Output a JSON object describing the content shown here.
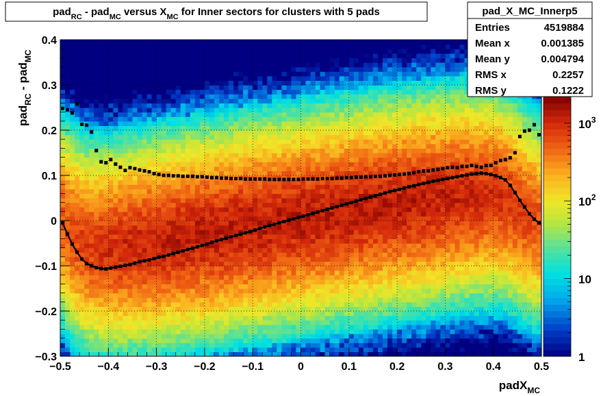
{
  "chart_data": {
    "type": "heatmap",
    "title_parts": [
      "pad",
      "RC",
      " - pad",
      "MC",
      " versus X",
      "MC",
      " for Inner sectors for clusters with 5 pads"
    ],
    "xlabel_parts": [
      "padX",
      "MC"
    ],
    "ylabel_parts": [
      "pad",
      "RC",
      " - pad",
      "MC"
    ],
    "xlim": [
      -0.5,
      0.5
    ],
    "ylim": [
      -0.3,
      0.4
    ],
    "x_ticks": [
      "−0.5",
      "−0.4",
      "−0.3",
      "−0.2",
      "−0.1",
      "0",
      "0.1",
      "0.2",
      "0.3",
      "0.4",
      "0.5"
    ],
    "x_tick_values": [
      -0.5,
      -0.4,
      -0.3,
      -0.2,
      -0.1,
      0,
      0.1,
      0.2,
      0.3,
      0.4,
      0.5
    ],
    "y_ticks": [
      "−0.3",
      "−0.2",
      "−0.1",
      "0",
      "0.1",
      "0.2",
      "0.3",
      "0.4"
    ],
    "y_tick_values": [
      -0.3,
      -0.2,
      -0.1,
      0,
      0.1,
      0.2,
      0.3,
      0.4
    ],
    "grid": true,
    "log_z": true,
    "z_ticks": [
      "1",
      "10",
      "10^2",
      "10^3"
    ],
    "z_tick_values": [
      1,
      10,
      100,
      1000
    ],
    "stats": {
      "name": "pad_X_MC_Innerp5",
      "rows": [
        {
          "label": "Entries",
          "value": "4519884"
        },
        {
          "label": "Mean x",
          "value": "0.001385"
        },
        {
          "label": "Mean y",
          "value": "0.004794"
        },
        {
          "label": "RMS x",
          "value": "0.2257"
        },
        {
          "label": "RMS y",
          "value": "0.1222"
        }
      ]
    },
    "series": [
      {
        "type": "profile-mean",
        "x": [
          -0.495,
          -0.485,
          -0.475,
          -0.465,
          -0.455,
          -0.445,
          -0.435,
          -0.425,
          -0.415,
          -0.405,
          -0.395,
          -0.385,
          -0.375,
          -0.365,
          -0.355,
          -0.345,
          -0.335,
          -0.325,
          -0.315,
          -0.305,
          -0.295,
          -0.285,
          -0.275,
          -0.265,
          -0.255,
          -0.245,
          -0.235,
          -0.225,
          -0.215,
          -0.205,
          -0.195,
          -0.185,
          -0.175,
          -0.165,
          -0.155,
          -0.145,
          -0.135,
          -0.125,
          -0.115,
          -0.105,
          -0.095,
          -0.085,
          -0.075,
          -0.065,
          -0.055,
          -0.045,
          -0.035,
          -0.025,
          -0.015,
          -0.005,
          0.005,
          0.015,
          0.025,
          0.035,
          0.045,
          0.055,
          0.065,
          0.075,
          0.085,
          0.095,
          0.105,
          0.115,
          0.125,
          0.135,
          0.145,
          0.155,
          0.165,
          0.175,
          0.185,
          0.195,
          0.205,
          0.215,
          0.225,
          0.235,
          0.245,
          0.255,
          0.265,
          0.275,
          0.285,
          0.295,
          0.305,
          0.315,
          0.325,
          0.335,
          0.345,
          0.355,
          0.365,
          0.375,
          0.385,
          0.395,
          0.405,
          0.415,
          0.425,
          0.435,
          0.445,
          0.455,
          0.465,
          0.475,
          0.485,
          0.495
        ],
        "y": [
          -0.005,
          -0.03,
          -0.052,
          -0.07,
          -0.085,
          -0.095,
          -0.1,
          -0.104,
          -0.106,
          -0.107,
          -0.105,
          -0.103,
          -0.101,
          -0.099,
          -0.097,
          -0.094,
          -0.091,
          -0.089,
          -0.087,
          -0.084,
          -0.081,
          -0.079,
          -0.076,
          -0.073,
          -0.07,
          -0.067,
          -0.064,
          -0.061,
          -0.058,
          -0.055,
          -0.052,
          -0.048,
          -0.045,
          -0.042,
          -0.039,
          -0.036,
          -0.033,
          -0.03,
          -0.027,
          -0.024,
          -0.021,
          -0.017,
          -0.014,
          -0.011,
          -0.008,
          -0.005,
          -0.002,
          0.001,
          0.004,
          0.007,
          0.01,
          0.013,
          0.016,
          0.019,
          0.022,
          0.025,
          0.028,
          0.031,
          0.034,
          0.037,
          0.04,
          0.043,
          0.046,
          0.049,
          0.052,
          0.055,
          0.058,
          0.061,
          0.064,
          0.067,
          0.069,
          0.072,
          0.075,
          0.077,
          0.08,
          0.082,
          0.085,
          0.087,
          0.089,
          0.091,
          0.093,
          0.095,
          0.097,
          0.099,
          0.101,
          0.103,
          0.104,
          0.105,
          0.104,
          0.102,
          0.099,
          0.095,
          0.09,
          0.078,
          0.062,
          0.045,
          0.03,
          0.015,
          0.003,
          -0.005
        ]
      },
      {
        "type": "profile-rms",
        "x": [
          -0.495,
          -0.485,
          -0.475,
          -0.465,
          -0.455,
          -0.445,
          -0.435,
          -0.425,
          -0.415,
          -0.405,
          -0.395,
          -0.385,
          -0.375,
          -0.365,
          -0.355,
          -0.345,
          -0.335,
          -0.325,
          -0.315,
          -0.305,
          -0.295,
          -0.285,
          -0.275,
          -0.265,
          -0.255,
          -0.245,
          -0.235,
          -0.225,
          -0.215,
          -0.205,
          -0.195,
          -0.185,
          -0.175,
          -0.165,
          -0.155,
          -0.145,
          -0.135,
          -0.125,
          -0.115,
          -0.105,
          -0.095,
          -0.085,
          -0.075,
          -0.065,
          -0.055,
          -0.045,
          -0.035,
          -0.025,
          -0.015,
          -0.005,
          0.005,
          0.015,
          0.025,
          0.035,
          0.045,
          0.055,
          0.065,
          0.075,
          0.085,
          0.095,
          0.105,
          0.115,
          0.125,
          0.135,
          0.145,
          0.155,
          0.165,
          0.175,
          0.185,
          0.195,
          0.205,
          0.215,
          0.225,
          0.235,
          0.245,
          0.255,
          0.265,
          0.275,
          0.285,
          0.295,
          0.305,
          0.315,
          0.325,
          0.335,
          0.345,
          0.355,
          0.365,
          0.375,
          0.385,
          0.395,
          0.405,
          0.415,
          0.425,
          0.435,
          0.445,
          0.455,
          0.465,
          0.475,
          0.485,
          0.495
        ],
        "y": [
          0.248,
          0.245,
          0.238,
          0.258,
          0.213,
          0.211,
          0.196,
          0.155,
          0.13,
          0.128,
          0.135,
          0.125,
          0.118,
          0.111,
          0.117,
          0.115,
          0.112,
          0.11,
          0.108,
          0.104,
          0.102,
          0.1,
          0.1,
          0.099,
          0.099,
          0.098,
          0.098,
          0.098,
          0.097,
          0.097,
          0.096,
          0.095,
          0.095,
          0.094,
          0.094,
          0.093,
          0.093,
          0.093,
          0.092,
          0.092,
          0.092,
          0.092,
          0.092,
          0.091,
          0.091,
          0.091,
          0.091,
          0.091,
          0.091,
          0.091,
          0.092,
          0.092,
          0.092,
          0.092,
          0.093,
          0.093,
          0.093,
          0.094,
          0.094,
          0.095,
          0.095,
          0.096,
          0.096,
          0.097,
          0.097,
          0.098,
          0.098,
          0.099,
          0.1,
          0.101,
          0.102,
          0.103,
          0.104,
          0.106,
          0.108,
          0.11,
          0.11,
          0.112,
          0.113,
          0.115,
          0.117,
          0.118,
          0.117,
          0.12,
          0.12,
          0.122,
          0.12,
          0.118,
          0.122,
          0.122,
          0.128,
          0.133,
          0.135,
          0.139,
          0.15,
          0.186,
          0.198,
          0.2,
          0.212,
          0.19
        ]
      }
    ]
  }
}
